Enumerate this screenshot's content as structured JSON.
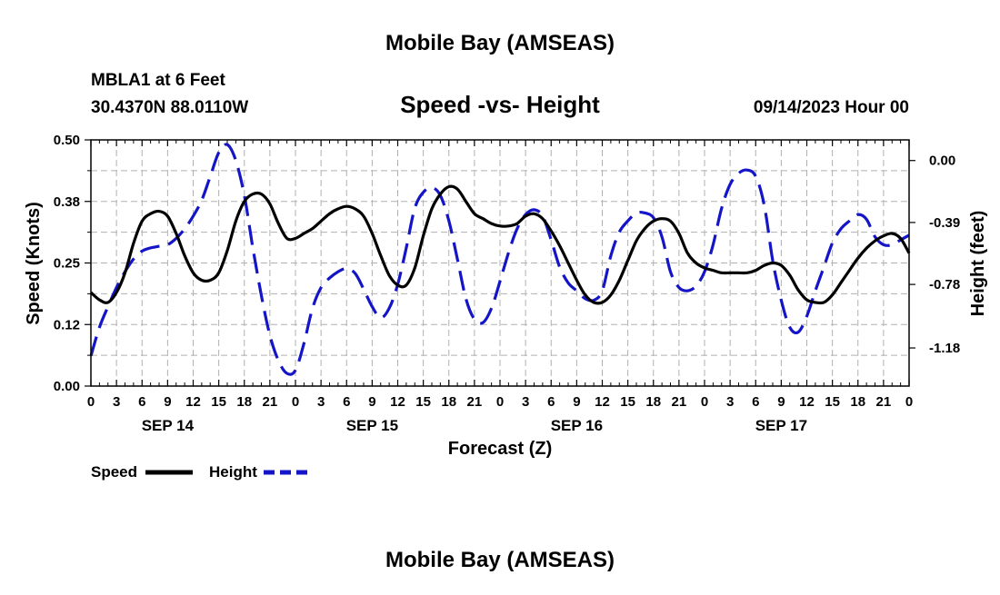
{
  "header": {
    "title": "Mobile Bay (AMSEAS)",
    "station": "MBLA1 at 6 Feet",
    "coords": "30.4370N  88.0110W",
    "subtitle": "Speed -vs- Height",
    "issued": "09/14/2023 Hour 00"
  },
  "footer": {
    "title": "Mobile Bay (AMSEAS)"
  },
  "legend": {
    "speed_label": "Speed",
    "height_label": "Height"
  },
  "colors": {
    "speed": "#000000",
    "height": "#1515c8",
    "grid": "#b0b0b0"
  },
  "chart_data": {
    "type": "line",
    "xlabel": "Forecast (Z)",
    "ylabel_left": "Speed (Knots)",
    "ylabel_right": "Height (feet)",
    "xlim_hours": [
      0,
      96
    ],
    "ylim_left": [
      0,
      0.5
    ],
    "ylim_right": [
      -1.42,
      0.13
    ],
    "left_ticks": [
      "0.00",
      "0.12",
      "0.25",
      "0.38",
      "0.50"
    ],
    "left_tick_values": [
      0,
      0.125,
      0.25,
      0.375,
      0.5
    ],
    "right_ticks": [
      "0.00",
      "-0.39",
      "-0.78",
      "-1.18"
    ],
    "right_tick_values": [
      0,
      -0.39,
      -0.78,
      -1.18
    ],
    "x_tick_labels": [
      "0",
      "3",
      "6",
      "9",
      "12",
      "15",
      "18",
      "21",
      "0",
      "3",
      "6",
      "9",
      "12",
      "15",
      "18",
      "21",
      "0",
      "3",
      "6",
      "9",
      "12",
      "15",
      "18",
      "21",
      "0",
      "3",
      "6",
      "9",
      "12",
      "15",
      "18",
      "21",
      "0"
    ],
    "date_labels": [
      {
        "label": "SEP 14",
        "hour": 9
      },
      {
        "label": "SEP 15",
        "hour": 33
      },
      {
        "label": "SEP 16",
        "hour": 57
      },
      {
        "label": "SEP 17",
        "hour": 81
      }
    ],
    "series": [
      {
        "name": "Speed",
        "axis": "left",
        "style": "solid",
        "x": [
          0,
          1,
          2,
          3,
          4,
          5,
          6,
          7,
          8,
          9,
          10,
          11,
          12,
          13,
          14,
          15,
          16,
          17,
          18,
          19,
          20,
          21,
          22,
          23,
          24,
          25,
          26,
          27,
          28,
          29,
          30,
          31,
          32,
          33,
          34,
          35,
          36,
          37,
          38,
          39,
          40,
          41,
          42,
          43,
          44,
          45,
          46,
          47,
          48,
          49,
          50,
          51,
          52,
          53,
          54,
          55,
          56,
          57,
          58,
          59,
          60,
          61,
          62,
          63,
          64,
          65,
          66,
          67,
          68,
          69,
          70,
          71,
          72,
          73,
          74,
          75,
          76,
          77,
          78,
          79,
          80,
          81,
          82,
          83,
          84,
          85,
          86,
          87,
          88,
          89,
          90,
          91,
          92,
          93,
          94,
          95,
          96
        ],
        "values": [
          0.19,
          0.175,
          0.17,
          0.19,
          0.23,
          0.29,
          0.335,
          0.35,
          0.355,
          0.345,
          0.31,
          0.265,
          0.23,
          0.215,
          0.215,
          0.23,
          0.275,
          0.335,
          0.375,
          0.39,
          0.39,
          0.37,
          0.33,
          0.3,
          0.3,
          0.31,
          0.32,
          0.335,
          0.35,
          0.36,
          0.365,
          0.36,
          0.345,
          0.31,
          0.265,
          0.225,
          0.205,
          0.205,
          0.24,
          0.305,
          0.36,
          0.39,
          0.405,
          0.4,
          0.375,
          0.35,
          0.34,
          0.33,
          0.325,
          0.325,
          0.33,
          0.345,
          0.35,
          0.34,
          0.315,
          0.285,
          0.25,
          0.215,
          0.185,
          0.17,
          0.17,
          0.185,
          0.215,
          0.255,
          0.295,
          0.32,
          0.335,
          0.34,
          0.335,
          0.31,
          0.27,
          0.25,
          0.24,
          0.235,
          0.23,
          0.23,
          0.23,
          0.23,
          0.235,
          0.245,
          0.25,
          0.245,
          0.225,
          0.195,
          0.175,
          0.17,
          0.17,
          0.185,
          0.21,
          0.235,
          0.26,
          0.28,
          0.295,
          0.305,
          0.31,
          0.3,
          0.27
        ]
      },
      {
        "name": "Height",
        "axis": "right",
        "style": "dashed",
        "x": [
          0,
          1,
          2,
          3,
          4,
          5,
          6,
          7,
          8,
          9,
          10,
          11,
          12,
          13,
          14,
          15,
          16,
          17,
          18,
          19,
          20,
          21,
          22,
          23,
          24,
          25,
          26,
          27,
          28,
          29,
          30,
          31,
          32,
          33,
          34,
          35,
          36,
          37,
          38,
          39,
          40,
          41,
          42,
          43,
          44,
          45,
          46,
          47,
          48,
          49,
          50,
          51,
          52,
          53,
          54,
          55,
          56,
          57,
          58,
          59,
          60,
          61,
          62,
          63,
          64,
          65,
          66,
          67,
          68,
          69,
          70,
          71,
          72,
          73,
          74,
          75,
          76,
          77,
          78,
          79,
          80,
          81,
          82,
          83,
          84,
          85,
          86,
          87,
          88,
          89,
          90,
          91,
          92,
          93,
          94,
          95,
          96
        ],
        "values": [
          -1.23,
          -1.05,
          -0.92,
          -0.8,
          -0.7,
          -0.62,
          -0.57,
          -0.55,
          -0.54,
          -0.53,
          -0.49,
          -0.43,
          -0.35,
          -0.25,
          -0.1,
          0.05,
          0.1,
          0.0,
          -0.22,
          -0.55,
          -0.85,
          -1.1,
          -1.26,
          -1.34,
          -1.32,
          -1.15,
          -0.93,
          -0.8,
          -0.74,
          -0.7,
          -0.68,
          -0.71,
          -0.81,
          -0.92,
          -0.99,
          -0.93,
          -0.78,
          -0.55,
          -0.3,
          -0.2,
          -0.17,
          -0.22,
          -0.38,
          -0.62,
          -0.87,
          -1.0,
          -1.02,
          -0.93,
          -0.76,
          -0.58,
          -0.43,
          -0.34,
          -0.31,
          -0.35,
          -0.5,
          -0.67,
          -0.77,
          -0.82,
          -0.87,
          -0.88,
          -0.82,
          -0.6,
          -0.45,
          -0.38,
          -0.33,
          -0.33,
          -0.36,
          -0.48,
          -0.7,
          -0.8,
          -0.82,
          -0.79,
          -0.7,
          -0.53,
          -0.3,
          -0.15,
          -0.08,
          -0.06,
          -0.1,
          -0.28,
          -0.63,
          -0.88,
          -1.05,
          -1.08,
          -0.98,
          -0.82,
          -0.67,
          -0.52,
          -0.43,
          -0.38,
          -0.34,
          -0.37,
          -0.48,
          -0.53,
          -0.53,
          -0.5,
          -0.47
        ]
      }
    ],
    "grid": true,
    "legend_position": "bottom-left"
  }
}
